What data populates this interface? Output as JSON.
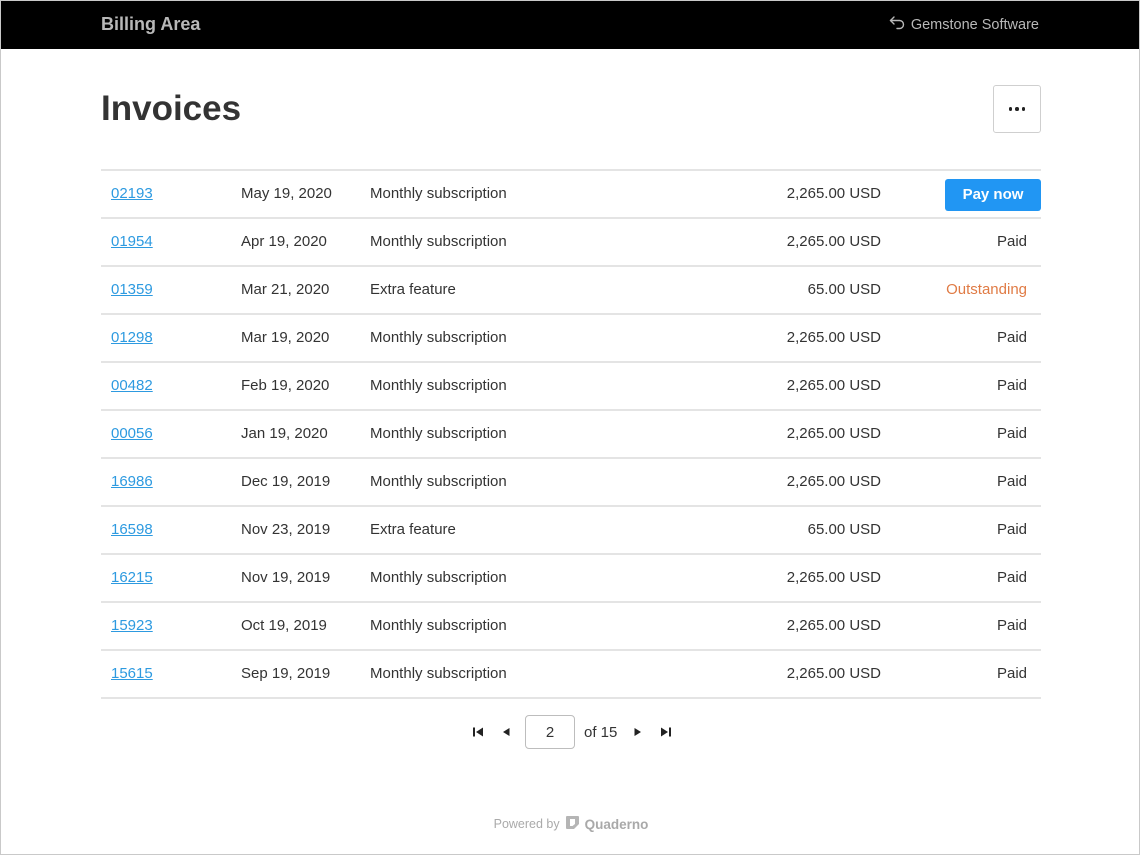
{
  "header": {
    "app_title": "Billing Area",
    "back_link_label": "Gemstone Software",
    "back_icon": "return-arrow-icon"
  },
  "main": {
    "title": "Invoices",
    "more_icon": "more-horizontal-icon"
  },
  "invoices": [
    {
      "number": "02193",
      "date": "May 19, 2020",
      "description": "Monthly subscription",
      "amount": "2,265.00 USD",
      "status": "Pay now",
      "status_type": "action"
    },
    {
      "number": "01954",
      "date": "Apr 19, 2020",
      "description": "Monthly subscription",
      "amount": "2,265.00 USD",
      "status": "Paid",
      "status_type": "paid"
    },
    {
      "number": "01359",
      "date": "Mar 21, 2020",
      "description": "Extra feature",
      "amount": "65.00 USD",
      "status": "Outstanding",
      "status_type": "outstanding"
    },
    {
      "number": "01298",
      "date": "Mar 19, 2020",
      "description": "Monthly subscription",
      "amount": "2,265.00 USD",
      "status": "Paid",
      "status_type": "paid"
    },
    {
      "number": "00482",
      "date": "Feb 19, 2020",
      "description": "Monthly subscription",
      "amount": "2,265.00 USD",
      "status": "Paid",
      "status_type": "paid"
    },
    {
      "number": "00056",
      "date": "Jan 19, 2020",
      "description": "Monthly subscription",
      "amount": "2,265.00 USD",
      "status": "Paid",
      "status_type": "paid"
    },
    {
      "number": "16986",
      "date": "Dec 19, 2019",
      "description": "Monthly subscription",
      "amount": "2,265.00 USD",
      "status": "Paid",
      "status_type": "paid"
    },
    {
      "number": "16598",
      "date": "Nov 23, 2019",
      "description": "Extra feature",
      "amount": "65.00 USD",
      "status": "Paid",
      "status_type": "paid"
    },
    {
      "number": "16215",
      "date": "Nov 19, 2019",
      "description": "Monthly subscription",
      "amount": "2,265.00 USD",
      "status": "Paid",
      "status_type": "paid"
    },
    {
      "number": "15923",
      "date": "Oct 19, 2019",
      "description": "Monthly subscription",
      "amount": "2,265.00 USD",
      "status": "Paid",
      "status_type": "paid"
    },
    {
      "number": "15615",
      "date": "Sep 19, 2019",
      "description": "Monthly subscription",
      "amount": "2,265.00 USD",
      "status": "Paid",
      "status_type": "paid"
    }
  ],
  "pagination": {
    "current_page": "2",
    "total_label": "of 15",
    "first_icon": "first-page-icon",
    "prev_icon": "previous-page-icon",
    "next_icon": "next-page-icon",
    "last_icon": "last-page-icon"
  },
  "footer": {
    "powered_by": "Powered by",
    "brand": "Quaderno",
    "brand_icon": "quaderno-logo-icon"
  },
  "colors": {
    "topbar_bg": "#000000",
    "link": "#2d9ae0",
    "pay_button": "#2196f3",
    "outstanding": "#e07b45"
  }
}
